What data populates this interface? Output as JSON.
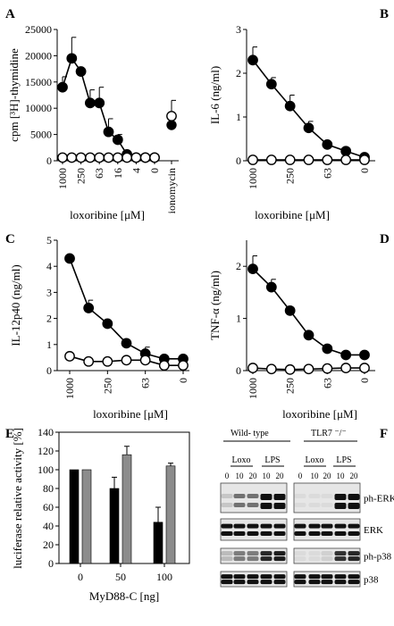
{
  "chart_data": [
    {
      "panel": "A",
      "type": "line",
      "ylabel": "cpm [³H]-thymidine",
      "xlabel": "loxoribine [μM]",
      "ylim": [
        0,
        25000
      ],
      "yticks": [
        "0",
        "5000",
        "10000",
        "15000",
        "20000",
        "25000"
      ],
      "xticks": [
        "1000",
        "250",
        "63",
        "16",
        "4",
        "0",
        "ionomycin"
      ],
      "series": [
        {
          "marker": "filled",
          "values": [
            14000,
            19500,
            17000,
            11000,
            11000,
            5500,
            4000,
            1200,
            600,
            600,
            600
          ],
          "err": [
            2000,
            4000,
            0,
            2500,
            3000,
            2500,
            1000,
            0,
            0,
            0,
            0
          ]
        },
        {
          "marker": "open",
          "values": [
            600,
            600,
            600,
            600,
            600,
            600,
            600,
            600,
            600,
            600,
            600
          ]
        }
      ],
      "ionomycin": {
        "filled": 6800,
        "open": 8500,
        "open_err": 3000
      }
    },
    {
      "panel": "B",
      "type": "line",
      "ylabel": "IL-6 (ng/ml)",
      "xlabel": "loxoribine [μM]",
      "ylim": [
        0,
        3
      ],
      "yticks": [
        "0",
        "1",
        "2",
        "3"
      ],
      "xticks": [
        "1000",
        "250",
        "63",
        "0"
      ],
      "series": [
        {
          "marker": "filled",
          "values": [
            2.3,
            1.75,
            1.25,
            0.75,
            0.37,
            0.22,
            0.08
          ],
          "err": [
            0.3,
            0.15,
            0.25,
            0.15,
            0,
            0,
            0
          ]
        },
        {
          "marker": "open",
          "values": [
            0.02,
            0.02,
            0.02,
            0.02,
            0.02,
            0.02,
            0.02
          ]
        }
      ]
    },
    {
      "panel": "C",
      "type": "line",
      "ylabel": "IL-12p40 (ng/ml)",
      "xlabel": "loxoribine [μM]",
      "ylim": [
        0,
        5
      ],
      "yticks": [
        "0",
        "1",
        "2",
        "3",
        "4",
        "5"
      ],
      "xticks": [
        "1000",
        "250",
        "63",
        "0"
      ],
      "series": [
        {
          "marker": "filled",
          "values": [
            4.3,
            2.4,
            1.8,
            1.05,
            0.65,
            0.45,
            0.45
          ],
          "err": [
            0,
            0.3,
            0,
            0,
            0.25,
            0,
            0
          ]
        },
        {
          "marker": "open",
          "values": [
            0.55,
            0.35,
            0.35,
            0.4,
            0.4,
            0.2,
            0.2
          ]
        }
      ]
    },
    {
      "panel": "D",
      "type": "line",
      "ylabel": "TNF-α (ng/ml)",
      "xlabel": "loxoribine [μM]",
      "ylim": [
        0,
        2.5
      ],
      "yticks": [
        "0",
        "1",
        "2"
      ],
      "xticks": [
        "1000",
        "250",
        "63",
        "0"
      ],
      "series": [
        {
          "marker": "filled",
          "values": [
            1.95,
            1.6,
            1.15,
            0.68,
            0.42,
            0.3,
            0.3
          ],
          "err": [
            0.25,
            0.15,
            0,
            0,
            0,
            0,
            0
          ]
        },
        {
          "marker": "open",
          "values": [
            0.05,
            0.03,
            0.02,
            0.03,
            0.04,
            0.05,
            0.05
          ]
        }
      ]
    },
    {
      "panel": "E",
      "type": "bar",
      "ylabel": "luciferase relative activity [%]",
      "xlabel": "MyD88-C [ng]",
      "ylim": [
        0,
        140
      ],
      "yticks": [
        "0",
        "20",
        "40",
        "60",
        "80",
        "100",
        "120",
        "140"
      ],
      "categories": [
        "0",
        "50",
        "100"
      ],
      "series": [
        {
          "color": "#000000",
          "values": [
            100,
            80,
            44
          ],
          "err": [
            0,
            12,
            16
          ]
        },
        {
          "color": "#8c8c8c",
          "values": [
            100,
            116,
            104
          ],
          "err": [
            0,
            9,
            3
          ]
        }
      ]
    }
  ],
  "panel_f": {
    "label": "F",
    "group_left": "Wild- type",
    "group_right": "TLR7 ⁻/⁻",
    "treatments": {
      "loxo": "Loxo",
      "lps": "LPS"
    },
    "times": [
      "0",
      "10",
      "20",
      "10",
      "20"
    ],
    "rows": [
      "ph-ERK",
      "ERK",
      "ph-p38",
      "p38"
    ]
  }
}
